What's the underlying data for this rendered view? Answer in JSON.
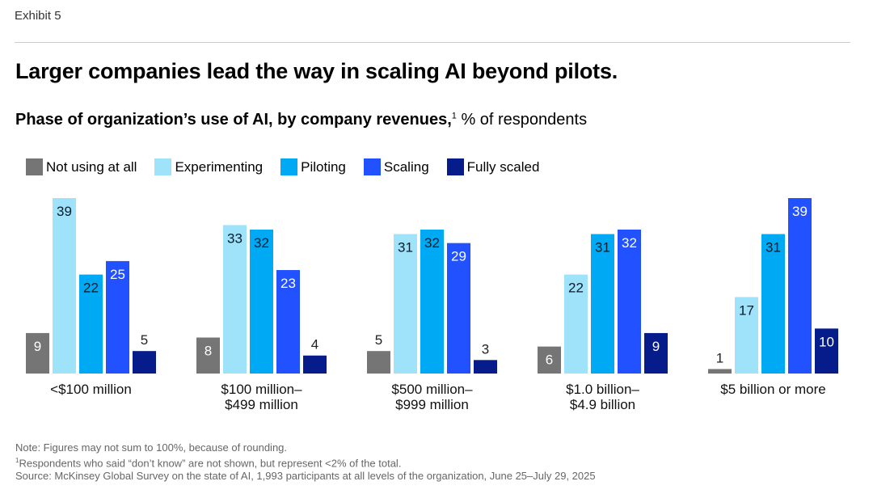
{
  "header": {
    "exhibit": "Exhibit 5"
  },
  "title": "Larger companies lead the way in scaling AI beyond pilots.",
  "subtitle": {
    "bold": "Phase of organization’s use of AI, by company revenues,",
    "footnote_mark": "1",
    "rest": " % of respondents"
  },
  "chart_data": {
    "type": "bar",
    "title": "Phase of organization’s use of AI, by company revenues",
    "ylabel": "% of respondents",
    "ylim": [
      0,
      40
    ],
    "grid": false,
    "legend_position": "top-left",
    "categories": [
      [
        "<$100 million"
      ],
      [
        "$100 million–",
        "$499 million"
      ],
      [
        "$500 million–",
        "$999 million"
      ],
      [
        "$1.0 billion–",
        "$4.9 billion"
      ],
      [
        "$5 billion or more"
      ]
    ],
    "series": [
      {
        "name": "Not using at all",
        "color": "#757575",
        "label_color": "#ffffff",
        "values": [
          9,
          8,
          5,
          6,
          1
        ]
      },
      {
        "name": "Experimenting",
        "color": "#9fe3fb",
        "label_color": "#051c2c",
        "values": [
          39,
          33,
          31,
          22,
          17
        ]
      },
      {
        "name": "Piloting",
        "color": "#00a9f4",
        "label_color": "#051c2c",
        "values": [
          22,
          32,
          32,
          31,
          31
        ]
      },
      {
        "name": "Scaling",
        "color": "#2251ff",
        "label_color": "#ffffff",
        "values": [
          25,
          23,
          29,
          32,
          39
        ]
      },
      {
        "name": "Fully scaled",
        "color": "#051c8a",
        "label_color": "#ffffff",
        "values": [
          5,
          4,
          3,
          9,
          10
        ]
      }
    ]
  },
  "notes": {
    "note": "Note: Figures may not sum to 100%, because of rounding.",
    "footnote_mark": "1",
    "footnote": "Respondents who said “don’t know” are not shown, but represent <2% of the total.",
    "source": "Source: McKinsey Global Survey on the state of AI, 1,993 participants at all levels of the organization, June 25–July 29, 2025"
  }
}
